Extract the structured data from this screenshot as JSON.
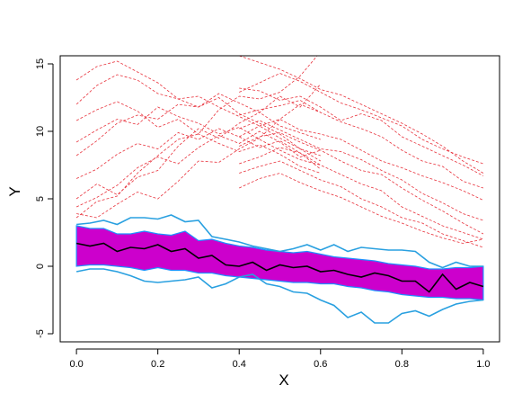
{
  "chart_data": {
    "type": "line",
    "xlabel": "X",
    "ylabel": "Y",
    "xlim": [
      -0.04,
      1.04
    ],
    "ylim": [
      -5.6,
      15.6
    ],
    "x_ticks": [
      "0.0",
      "0.2",
      "0.4",
      "0.6",
      "0.8",
      "1.0"
    ],
    "y_ticks": [
      "-5",
      "0",
      "5",
      "10",
      "15"
    ],
    "grid": false,
    "colors": {
      "band_fill": "#cc00cc",
      "band_edge": "#1e90ff",
      "outer_lines": "#29a0e0",
      "mean_line": "#000000",
      "sample_lines": "#e8323c"
    },
    "x": [
      0.0,
      0.033,
      0.067,
      0.1,
      0.133,
      0.167,
      0.2,
      0.233,
      0.267,
      0.3,
      0.333,
      0.367,
      0.4,
      0.433,
      0.467,
      0.5,
      0.533,
      0.567,
      0.6,
      0.633,
      0.667,
      0.7,
      0.733,
      0.767,
      0.8,
      0.833,
      0.867,
      0.9,
      0.933,
      0.967,
      1.0
    ],
    "series": [
      {
        "role": "mean",
        "values": [
          1.7,
          1.5,
          1.7,
          1.1,
          1.4,
          1.3,
          1.6,
          1.1,
          1.3,
          0.6,
          0.8,
          0.1,
          0.0,
          0.3,
          -0.3,
          0.1,
          -0.1,
          0.0,
          -0.4,
          -0.3,
          -0.6,
          -0.8,
          -0.5,
          -0.7,
          -1.1,
          -1.1,
          -1.9,
          -0.6,
          -1.7,
          -1.2,
          -1.5
        ]
      },
      {
        "role": "band_upper",
        "values": [
          3.0,
          2.8,
          2.8,
          2.4,
          2.4,
          2.6,
          2.4,
          2.3,
          2.6,
          1.9,
          2.0,
          1.7,
          1.5,
          1.4,
          1.2,
          1.1,
          1.0,
          1.1,
          0.9,
          0.7,
          0.6,
          0.5,
          0.4,
          0.2,
          0.1,
          0.0,
          -0.2,
          -0.2,
          -0.1,
          -0.1,
          0.0
        ]
      },
      {
        "role": "band_lower",
        "values": [
          0.0,
          0.1,
          0.1,
          0.0,
          -0.1,
          -0.3,
          -0.1,
          -0.3,
          -0.3,
          -0.5,
          -0.5,
          -0.7,
          -0.8,
          -0.9,
          -1.0,
          -1.1,
          -1.2,
          -1.2,
          -1.3,
          -1.3,
          -1.5,
          -1.6,
          -1.8,
          -1.9,
          -2.1,
          -2.2,
          -2.3,
          -2.3,
          -2.4,
          -2.4,
          -2.5
        ]
      },
      {
        "role": "outer_upper",
        "values": [
          3.1,
          3.2,
          3.4,
          3.1,
          3.6,
          3.6,
          3.5,
          3.8,
          3.3,
          3.4,
          2.2,
          2.0,
          1.8,
          1.5,
          1.3,
          1.1,
          1.3,
          1.6,
          1.2,
          1.6,
          1.1,
          1.4,
          1.3,
          1.2,
          1.2,
          1.1,
          0.3,
          -0.1,
          0.3,
          0.0,
          0.0
        ]
      },
      {
        "role": "outer_lower",
        "values": [
          -0.4,
          -0.2,
          -0.2,
          -0.4,
          -0.7,
          -1.1,
          -1.2,
          -1.1,
          -1.0,
          -0.8,
          -1.6,
          -1.3,
          -0.8,
          -0.6,
          -1.3,
          -1.5,
          -1.9,
          -2.0,
          -2.5,
          -2.9,
          -3.8,
          -3.4,
          -4.2,
          -4.2,
          -3.5,
          -3.3,
          -3.7,
          -3.2,
          -2.8,
          -2.6,
          -2.5
        ]
      }
    ],
    "samples": [
      [
        3.6,
        4.8,
        5.2,
        6.9,
        8.2,
        9.4,
        9.8,
        11.6,
        12.6,
        12.4,
        12.9,
        14.1,
        15.9
      ],
      [
        5.0,
        6.1,
        5.3,
        6.6,
        7.1,
        8.9,
        10.2,
        9.5,
        10.6,
        11.4,
        12.6,
        11.8,
        13.5
      ],
      [
        3.9,
        3.6,
        4.6,
        5.5,
        5.0,
        6.3,
        7.8,
        7.7,
        8.7,
        9.5,
        10.9,
        12.0,
        11.4
      ],
      [
        8.2,
        9.3,
        10.6,
        11.2,
        10.9,
        12.0,
        11.8,
        12.5,
        11.3,
        10.6,
        9.8,
        8.7,
        8.2
      ],
      [
        12.0,
        13.4,
        14.2,
        13.8,
        12.8,
        12.4,
        12.6,
        11.8,
        11.1,
        10.4,
        9.5,
        8.7,
        7.8
      ],
      [
        13.8,
        14.8,
        15.2,
        14.4,
        13.6,
        12.4,
        11.8,
        12.8,
        12.1,
        11.4,
        10.4,
        9.9,
        9.4
      ],
      [
        9.2,
        10.1,
        10.9,
        10.5,
        11.8,
        11.1,
        10.6,
        9.8,
        10.3,
        9.4,
        8.6,
        7.9,
        7.5
      ],
      [
        6.5,
        7.2,
        8.3,
        9.1,
        8.7,
        9.9,
        9.4,
        10.2,
        9.6,
        8.8,
        9.3,
        8.4,
        7.2
      ],
      [
        10.8,
        11.6,
        12.2,
        11.5,
        10.3,
        10.9,
        9.8,
        9.1,
        8.5,
        9.0,
        8.3,
        7.4,
        6.9
      ],
      [
        4.4,
        5.1,
        6.0,
        7.3,
        8.1,
        7.6,
        8.8,
        9.7,
        9.1,
        10.0,
        9.2,
        8.1,
        8.6
      ]
    ],
    "samples_right": [
      [
        12.9,
        13.6,
        14.3,
        13.7,
        12.9,
        12.1,
        11.6,
        11.0,
        10.4,
        9.4,
        8.7,
        8.1,
        7.6
      ],
      [
        15.6,
        15.1,
        14.6,
        13.9,
        13.1,
        12.7,
        12.0,
        11.3,
        10.6,
        9.8,
        8.9,
        7.8,
        6.9
      ],
      [
        13.2,
        13.0,
        12.3,
        12.6,
        11.8,
        10.8,
        11.3,
        10.8,
        9.6,
        8.9,
        8.2,
        7.5,
        6.7
      ],
      [
        11.2,
        11.6,
        11.9,
        12.3,
        11.4,
        10.7,
        10.2,
        9.6,
        8.6,
        7.8,
        7.4,
        6.3,
        5.8
      ],
      [
        9.6,
        10.4,
        10.9,
        10.1,
        9.8,
        9.4,
        8.6,
        7.8,
        7.3,
        6.7,
        6.2,
        5.6,
        4.9
      ],
      [
        10.2,
        10.8,
        10.1,
        9.4,
        8.7,
        8.5,
        7.9,
        7.1,
        6.4,
        5.4,
        4.7,
        3.9,
        3.4
      ],
      [
        8.9,
        9.6,
        9.9,
        9.2,
        8.6,
        7.8,
        7.1,
        6.8,
        5.8,
        4.9,
        4.1,
        3.2,
        2.4
      ],
      [
        7.6,
        8.1,
        8.8,
        8.4,
        7.5,
        6.8,
        6.1,
        5.6,
        4.4,
        3.7,
        3.0,
        2.5,
        2.0
      ],
      [
        6.9,
        7.4,
        7.8,
        7.1,
        6.4,
        5.9,
        5.0,
        4.4,
        3.6,
        3.2,
        2.4,
        1.9,
        1.4
      ],
      [
        5.8,
        6.5,
        6.9,
        6.2,
        5.6,
        5.1,
        4.4,
        3.7,
        3.2,
        2.6,
        2.1,
        1.7,
        2.0
      ]
    ]
  }
}
